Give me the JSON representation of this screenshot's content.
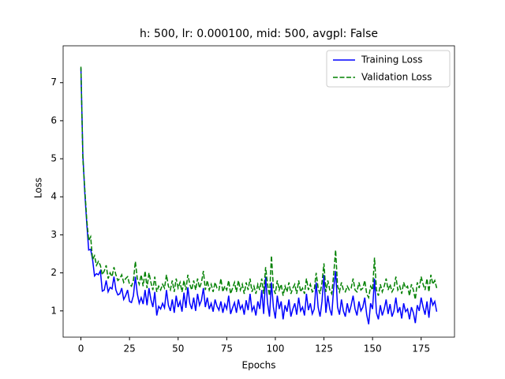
{
  "chart_data": {
    "type": "line",
    "title": "h: 500, lr: 0.000100, mid: 500, avgpl: False",
    "xlabel": "Epochs",
    "ylabel": "Loss",
    "x": [
      0,
      1,
      2,
      3,
      4,
      5,
      6,
      7,
      8,
      9,
      10,
      11,
      12,
      13,
      14,
      15,
      16,
      17,
      18,
      19,
      20,
      21,
      22,
      23,
      24,
      25,
      26,
      27,
      28,
      29,
      30,
      31,
      32,
      33,
      34,
      35,
      36,
      37,
      38,
      39,
      40,
      41,
      42,
      43,
      44,
      45,
      46,
      47,
      48,
      49,
      50,
      51,
      52,
      53,
      54,
      55,
      56,
      57,
      58,
      59,
      60,
      61,
      62,
      63,
      64,
      65,
      66,
      67,
      68,
      69,
      70,
      71,
      72,
      73,
      74,
      75,
      76,
      77,
      78,
      79,
      80,
      81,
      82,
      83,
      84,
      85,
      86,
      87,
      88,
      89,
      90,
      91,
      92,
      93,
      94,
      95,
      96,
      97,
      98,
      99,
      100,
      101,
      102,
      103,
      104,
      105,
      106,
      107,
      108,
      109,
      110,
      111,
      112,
      113,
      114,
      115,
      116,
      117,
      118,
      119,
      120,
      121,
      122,
      123,
      124,
      125,
      126,
      127,
      128,
      129,
      130,
      131,
      132,
      133,
      134,
      135,
      136,
      137,
      138,
      139,
      140,
      141,
      142,
      143,
      144,
      145,
      146,
      147,
      148,
      149,
      150,
      151,
      152,
      153,
      154,
      155,
      156,
      157,
      158,
      159,
      160,
      161,
      162,
      163,
      164,
      165,
      166,
      167,
      168,
      169,
      170,
      171,
      172,
      173,
      174,
      175,
      176,
      177,
      178,
      179,
      180,
      181,
      182,
      183
    ],
    "series": [
      {
        "name": "Training Loss",
        "color": "#0000ff",
        "dash": "solid",
        "values": [
          7.38,
          5.1,
          4.1,
          3.3,
          2.6,
          2.62,
          2.35,
          1.92,
          1.98,
          1.95,
          2.05,
          1.52,
          1.55,
          1.8,
          1.5,
          1.62,
          1.58,
          1.9,
          1.55,
          1.42,
          1.45,
          1.6,
          1.3,
          1.4,
          1.55,
          1.25,
          1.22,
          1.4,
          1.9,
          1.45,
          1.2,
          1.35,
          1.18,
          1.55,
          1.15,
          1.6,
          1.3,
          1.1,
          1.5,
          0.88,
          1.12,
          1.05,
          1.2,
          1.08,
          1.55,
          1.15,
          1.0,
          1.3,
          0.95,
          1.4,
          1.1,
          1.25,
          0.98,
          1.48,
          1.08,
          1.62,
          1.2,
          1.05,
          1.35,
          1.0,
          1.45,
          1.15,
          1.28,
          1.6,
          1.1,
          1.35,
          1.05,
          1.2,
          0.98,
          1.3,
          1.12,
          1.02,
          1.25,
          0.95,
          1.18,
          1.05,
          1.4,
          0.92,
          1.08,
          1.22,
          0.95,
          1.3,
          1.05,
          1.15,
          0.9,
          1.28,
          1.02,
          1.45,
          1.0,
          1.12,
          0.88,
          1.25,
          1.05,
          1.55,
          0.92,
          1.9,
          1.2,
          0.85,
          1.75,
          1.1,
          0.8,
          1.4,
          1.05,
          1.25,
          0.78,
          1.15,
          0.98,
          1.3,
          0.85,
          1.05,
          1.2,
          0.9,
          1.35,
          1.0,
          1.1,
          0.88,
          1.45,
          1.02,
          1.2,
          0.92,
          1.05,
          1.75,
          1.1,
          0.85,
          1.25,
          1.95,
          0.95,
          1.4,
          1.05,
          0.88,
          1.6,
          2.05,
          1.1,
          0.9,
          1.3,
          1.0,
          0.85,
          1.2,
          0.95,
          1.15,
          1.4,
          1.05,
          0.88,
          1.25,
          1.0,
          1.1,
          1.35,
          0.9,
          0.65,
          1.2,
          1.05,
          1.85,
          0.95,
          0.78,
          1.15,
          0.88,
          1.05,
          1.3,
          0.92,
          1.18,
          0.85,
          1.0,
          1.35,
          0.95,
          1.1,
          0.8,
          1.2,
          0.98,
          1.05,
          0.78,
          1.1,
          0.95,
          0.68,
          1.15,
          1.0,
          1.35,
          1.1,
          0.9,
          1.25,
          0.82,
          1.35,
          1.15,
          1.25,
          0.98
        ]
      },
      {
        "name": "Validation Loss",
        "color": "#008000",
        "dash": "dashed",
        "values": [
          7.42,
          5.0,
          4.2,
          3.4,
          2.85,
          2.95,
          2.35,
          2.45,
          2.2,
          2.3,
          2.2,
          1.95,
          2.05,
          2.2,
          1.85,
          2.0,
          1.9,
          2.15,
          1.95,
          1.8,
          1.85,
          1.95,
          1.75,
          1.85,
          1.9,
          1.7,
          1.65,
          1.8,
          2.3,
          1.85,
          1.7,
          1.95,
          1.65,
          2.05,
          1.6,
          2.0,
          1.75,
          1.55,
          1.9,
          1.5,
          1.65,
          1.55,
          1.7,
          1.6,
          1.95,
          1.65,
          1.55,
          1.8,
          1.5,
          1.85,
          1.6,
          1.75,
          1.5,
          1.8,
          1.55,
          1.95,
          1.7,
          1.55,
          1.8,
          1.55,
          1.85,
          1.6,
          1.75,
          2.05,
          1.55,
          1.8,
          1.55,
          1.7,
          1.5,
          1.75,
          1.6,
          1.55,
          1.85,
          1.5,
          1.65,
          1.55,
          1.8,
          1.45,
          1.6,
          1.75,
          1.5,
          1.8,
          1.55,
          1.7,
          1.45,
          1.75,
          1.55,
          1.85,
          1.5,
          1.65,
          1.45,
          1.7,
          1.55,
          1.85,
          1.45,
          2.15,
          1.7,
          1.4,
          2.45,
          1.6,
          1.45,
          1.8,
          1.55,
          1.7,
          1.4,
          1.65,
          1.5,
          1.75,
          1.45,
          1.6,
          1.7,
          1.45,
          1.8,
          1.5,
          1.6,
          1.45,
          1.85,
          1.55,
          1.7,
          1.5,
          1.55,
          2.0,
          1.6,
          1.45,
          1.75,
          2.25,
          1.5,
          1.8,
          1.55,
          1.45,
          1.95,
          2.6,
          1.65,
          1.5,
          1.75,
          1.55,
          1.5,
          1.65,
          1.55,
          1.6,
          1.85,
          1.55,
          1.5,
          1.75,
          1.55,
          1.6,
          1.8,
          1.45,
          1.35,
          1.65,
          1.55,
          2.4,
          1.55,
          1.4,
          1.7,
          1.5,
          1.65,
          1.85,
          1.55,
          1.7,
          1.5,
          1.6,
          1.9,
          1.55,
          1.65,
          1.45,
          1.75,
          1.6,
          1.65,
          1.4,
          1.7,
          1.55,
          1.3,
          1.75,
          1.6,
          1.9,
          1.7,
          1.55,
          1.85,
          1.5,
          1.95,
          1.7,
          1.8,
          1.6
        ]
      }
    ],
    "xlim": [
      -9.15,
      192.15
    ],
    "ylim": [
      0.31,
      7.97
    ],
    "xticks": [
      0,
      25,
      50,
      75,
      100,
      125,
      150,
      175
    ],
    "yticks": [
      1,
      2,
      3,
      4,
      5,
      6,
      7
    ],
    "legend": "upper right"
  }
}
